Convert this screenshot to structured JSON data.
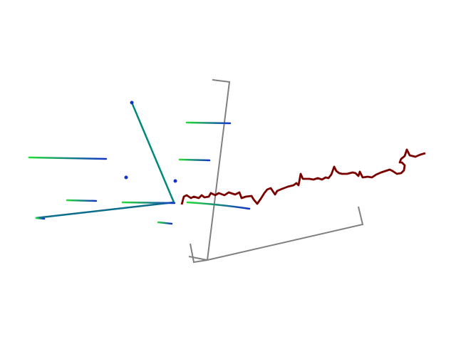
{
  "colors": {
    "background": "#ffffff",
    "axes": "#808080",
    "trajectory": "#7a0000",
    "link": "#00897b",
    "link_alt": "#0d6e8c",
    "streak_start": "#22dd33",
    "streak_end": "#1133cc",
    "dot": "#1133cc"
  },
  "scene": {
    "kind": "3d-point-cloud-visualization",
    "elements": [
      "coordinate-axes",
      "trajectory-path",
      "link-lines",
      "point-streaks",
      "isolated-points"
    ]
  }
}
